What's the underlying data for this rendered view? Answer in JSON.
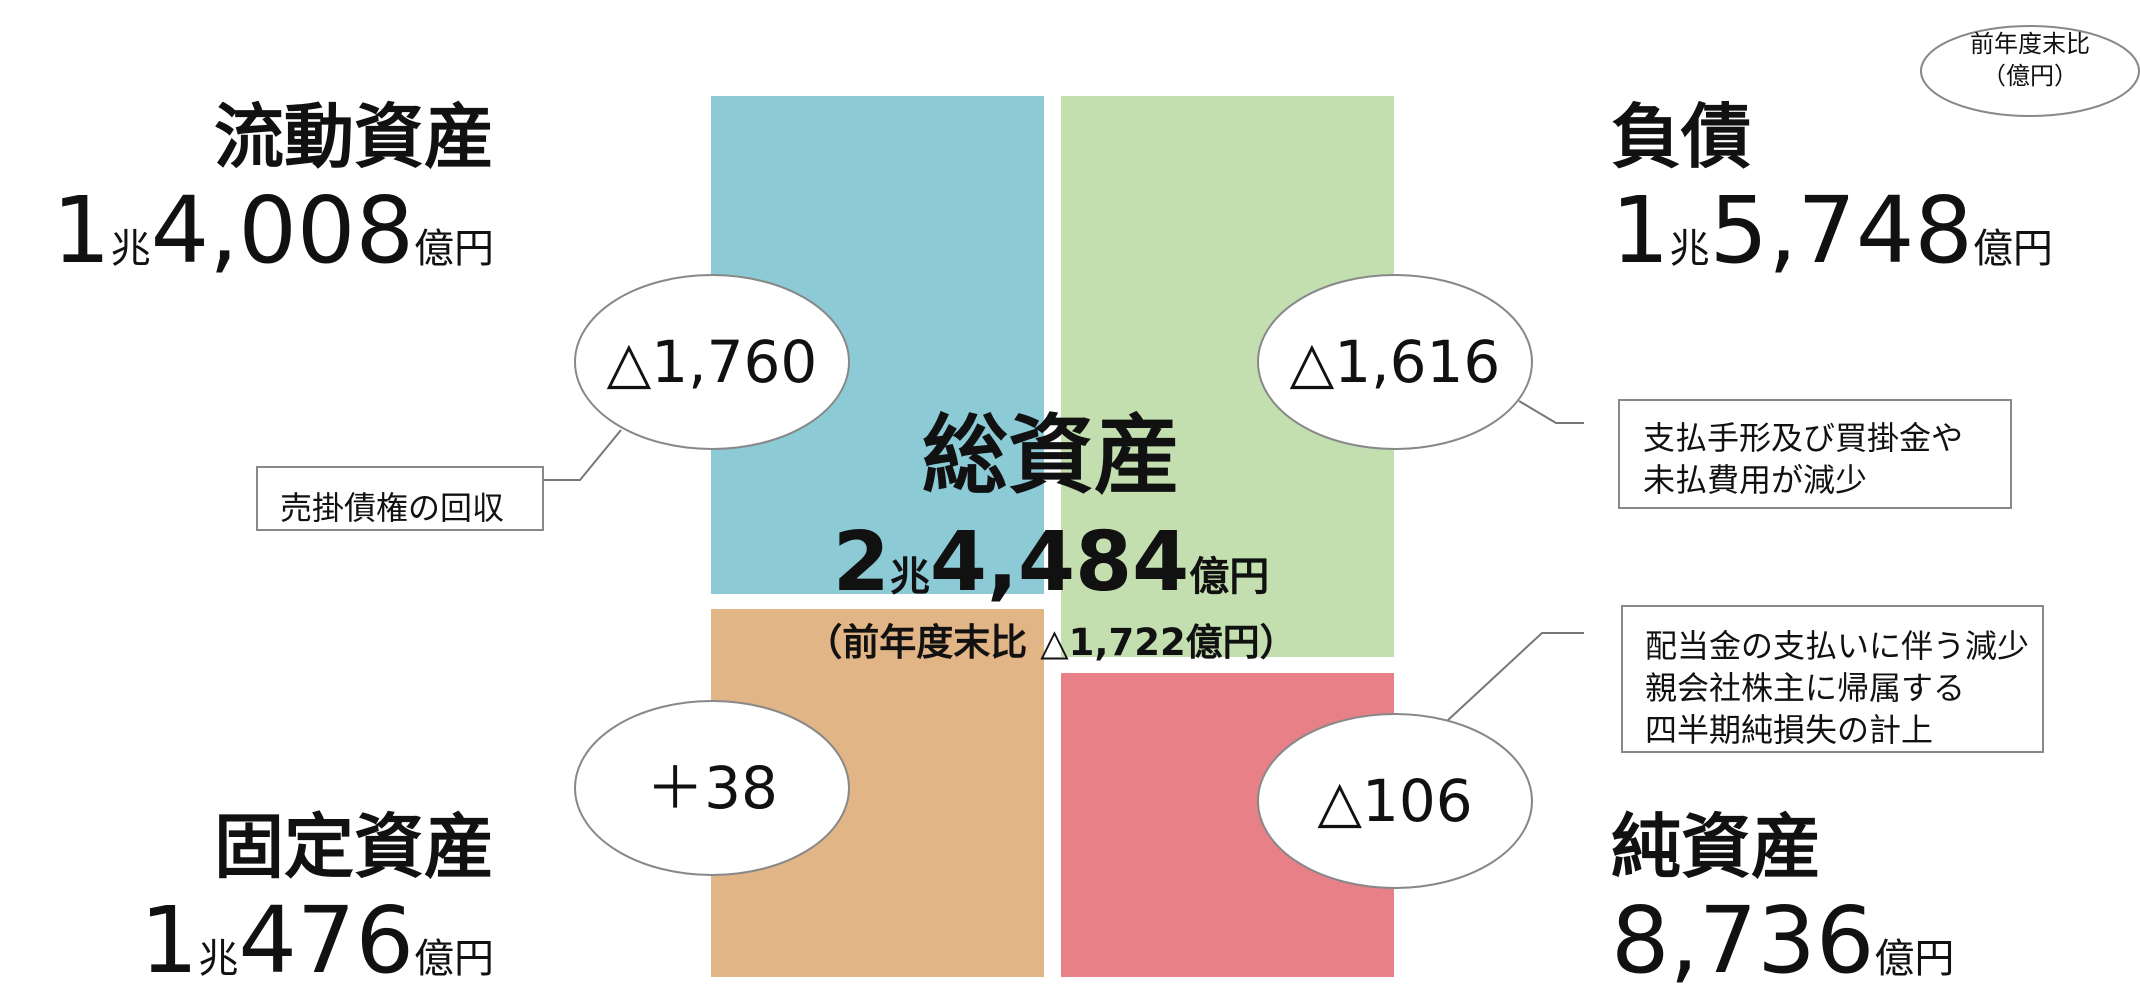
{
  "note": [
    "前年度末比",
    "（億円）"
  ],
  "sections": [
    {
      "title": "流動資産",
      "amount": [
        "1",
        "兆",
        "4,008",
        "億円"
      ],
      "change": "△1,760",
      "comment": [
        "売掛債権の回収"
      ]
    },
    {
      "title": "負債",
      "amount": [
        "1",
        "兆",
        "5,748",
        "億円"
      ],
      "change": "△1,616",
      "comment": [
        "支払手形及び買掛金や",
        "未払費用が減少"
      ]
    },
    {
      "title": "固定資産",
      "amount": [
        "1",
        "兆",
        "476",
        "億円"
      ],
      "change": "＋38",
      "comment": []
    },
    {
      "title": "純資産",
      "amount": [
        "8,736",
        "億円"
      ],
      "change": "△106",
      "comment": [
        "配当金の支払いに伴う減少",
        "親会社株主に帰属する",
        "四半期純損失の計上"
      ]
    }
  ],
  "total": {
    "title": "総資産",
    "amount": [
      "2",
      "兆",
      "4,484",
      "億円"
    ],
    "change": "（前年度末比 △1,722億円）"
  }
}
